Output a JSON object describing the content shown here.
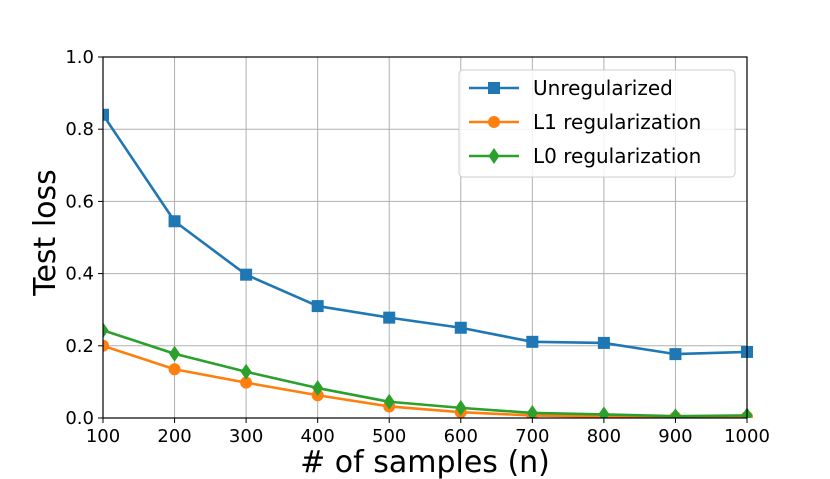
{
  "chart_data": {
    "type": "line",
    "title": "",
    "xlabel": "# of samples (n)",
    "ylabel": "Test loss",
    "x": [
      100,
      200,
      300,
      400,
      500,
      600,
      700,
      800,
      900,
      1000
    ],
    "xlim": [
      100,
      1000
    ],
    "ylim": [
      0.0,
      1.0
    ],
    "x_ticks": [
      "100",
      "200",
      "300",
      "400",
      "500",
      "600",
      "700",
      "800",
      "900",
      "1000"
    ],
    "y_ticks": [
      "0.0",
      "0.2",
      "0.4",
      "0.6",
      "0.8",
      "1.0"
    ],
    "grid": true,
    "legend_position": "top-right",
    "series": [
      {
        "name": "Unregularized",
        "color": "#1f77b4",
        "marker": "square",
        "values": [
          0.84,
          0.545,
          0.397,
          0.31,
          0.278,
          0.25,
          0.211,
          0.208,
          0.177,
          0.183
        ]
      },
      {
        "name": "L1 regularization",
        "color": "#ff7f0e",
        "marker": "circle",
        "values": [
          0.2,
          0.135,
          0.098,
          0.063,
          0.032,
          0.016,
          0.007,
          0.004,
          0.002,
          0.003
        ]
      },
      {
        "name": "L0 regularization",
        "color": "#2ca02c",
        "marker": "diamond",
        "values": [
          0.243,
          0.178,
          0.128,
          0.083,
          0.045,
          0.028,
          0.014,
          0.01,
          0.005,
          0.007
        ]
      }
    ]
  }
}
